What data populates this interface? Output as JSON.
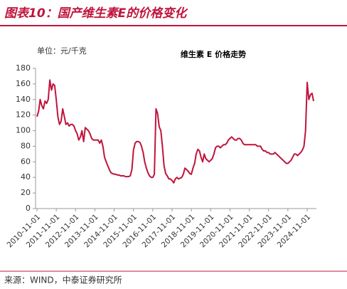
{
  "header": {
    "title": "图表10：国产维生素E的价格变化"
  },
  "chart_data": {
    "type": "line",
    "title": "维生素 E 价格走势",
    "unit_label": "单位：元/千克",
    "x": [
      "2010-11-01",
      "2010-12-01",
      "2011-01-01",
      "2011-02-01",
      "2011-03-01",
      "2011-04-01",
      "2011-05-01",
      "2011-06-01",
      "2011-07-01",
      "2011-08-01",
      "2011-09-01",
      "2011-10-01",
      "2011-11-01",
      "2011-12-01",
      "2012-01-01",
      "2012-02-01",
      "2012-03-01",
      "2012-04-01",
      "2012-05-01",
      "2012-06-01",
      "2012-07-01",
      "2012-08-01",
      "2012-09-01",
      "2012-10-01",
      "2012-11-01",
      "2012-12-01",
      "2013-01-01",
      "2013-02-01",
      "2013-03-01",
      "2013-04-01",
      "2013-05-01",
      "2013-06-01",
      "2013-07-01",
      "2013-08-01",
      "2013-09-01",
      "2013-10-01",
      "2013-11-01",
      "2013-12-01",
      "2014-01-01",
      "2014-02-01",
      "2014-03-01",
      "2014-04-01",
      "2014-05-01",
      "2014-06-01",
      "2014-07-01",
      "2014-08-01",
      "2014-09-01",
      "2014-10-01",
      "2014-11-01",
      "2014-12-01",
      "2015-01-01",
      "2015-02-01",
      "2015-03-01",
      "2015-04-01",
      "2015-05-01",
      "2015-06-01",
      "2015-07-01",
      "2015-08-01",
      "2015-09-01",
      "2015-10-01",
      "2015-11-01",
      "2015-12-01",
      "2016-01-01",
      "2016-02-01",
      "2016-03-01",
      "2016-04-01",
      "2016-05-01",
      "2016-06-01",
      "2016-07-01",
      "2016-08-01",
      "2016-09-01",
      "2016-10-01",
      "2016-11-01",
      "2016-12-01",
      "2017-01-01",
      "2017-02-01",
      "2017-03-01",
      "2017-04-01",
      "2017-05-01",
      "2017-06-01",
      "2017-07-01",
      "2017-08-01",
      "2017-09-01",
      "2017-10-01",
      "2017-11-01",
      "2017-12-01",
      "2018-01-01",
      "2018-02-01",
      "2018-03-01",
      "2018-04-01",
      "2018-05-01",
      "2018-06-01",
      "2018-07-01",
      "2018-08-01",
      "2018-09-01",
      "2018-10-01",
      "2018-11-01",
      "2018-12-01",
      "2019-01-01",
      "2019-02-01",
      "2019-03-01",
      "2019-04-01",
      "2019-05-01",
      "2019-06-01",
      "2019-07-01",
      "2019-08-01",
      "2019-09-01",
      "2019-10-01",
      "2019-11-01",
      "2019-12-01",
      "2020-01-01",
      "2020-02-01",
      "2020-03-01",
      "2020-04-01",
      "2020-05-01",
      "2020-06-01",
      "2020-07-01",
      "2020-08-01",
      "2020-09-01",
      "2020-10-01",
      "2020-11-01",
      "2020-12-01",
      "2021-01-01",
      "2021-02-01",
      "2021-03-01",
      "2021-04-01",
      "2021-05-01",
      "2021-06-01",
      "2021-07-01",
      "2021-08-01",
      "2021-09-01",
      "2021-10-01",
      "2021-11-01",
      "2021-12-01",
      "2022-01-01",
      "2022-02-01",
      "2022-03-01",
      "2022-04-01",
      "2022-05-01",
      "2022-06-01",
      "2022-07-01",
      "2022-08-01",
      "2022-09-01",
      "2022-10-01",
      "2022-11-01",
      "2022-12-01",
      "2023-01-01",
      "2023-02-01",
      "2023-03-01",
      "2023-04-01",
      "2023-05-01",
      "2023-06-01",
      "2023-07-01",
      "2023-08-01",
      "2023-09-01",
      "2023-10-01",
      "2023-11-01",
      "2023-12-01",
      "2024-01-01",
      "2024-02-01",
      "2024-03-01",
      "2024-04-01",
      "2024-05-01",
      "2024-06-01",
      "2024-07-01",
      "2024-08-01",
      "2024-09-01",
      "2024-10-01",
      "2024-11-01",
      "2024-12-01",
      "2025-01-01",
      "2025-02-01",
      "2025-03-01"
    ],
    "series": [
      {
        "color": "#c0143c",
        "values": [
          118,
          125,
          140,
          132,
          128,
          138,
          135,
          140,
          165,
          152,
          160,
          158,
          140,
          118,
          108,
          112,
          128,
          118,
          108,
          110,
          106,
          108,
          108,
          106,
          100,
          96,
          88,
          92,
          100,
          86,
          104,
          102,
          100,
          96,
          90,
          88,
          88,
          88,
          88,
          84,
          88,
          80,
          66,
          60,
          55,
          50,
          46,
          45,
          44,
          44,
          43,
          43,
          42,
          42,
          42,
          41,
          41,
          41,
          42,
          50,
          75,
          84,
          86,
          86,
          85,
          80,
          72,
          60,
          52,
          46,
          42,
          40,
          40,
          44,
          128,
          122,
          105,
          100,
          80,
          55,
          45,
          42,
          38,
          38,
          36,
          33,
          38,
          40,
          38,
          39,
          40,
          44,
          52,
          50,
          48,
          45,
          44,
          52,
          58,
          70,
          76,
          74,
          66,
          60,
          70,
          64,
          62,
          60,
          62,
          64,
          70,
          78,
          80,
          80,
          78,
          80,
          82,
          82,
          84,
          88,
          90,
          92,
          90,
          88,
          88,
          90,
          90,
          88,
          84,
          82,
          82,
          82,
          82,
          82,
          82,
          82,
          82,
          80,
          80,
          80,
          76,
          74,
          74,
          72,
          72,
          70,
          70,
          70,
          72,
          70,
          68,
          66,
          64,
          62,
          60,
          58,
          58,
          60,
          62,
          66,
          70,
          70,
          68,
          70,
          72,
          75,
          80,
          100,
          162,
          140,
          146,
          148,
          138
        ]
      }
    ],
    "xticks": [
      "2010-11-01",
      "2011-11-01",
      "2012-11-01",
      "2013-11-01",
      "2014-11-01",
      "2015-11-01",
      "2016-11-01",
      "2017-11-01",
      "2018-11-01",
      "2019-11-01",
      "2020-11-01",
      "2021-11-01",
      "2022-11-01",
      "2023-11-01",
      "2024-11-01"
    ],
    "ylim": [
      0,
      180
    ],
    "yticks": [
      0,
      20,
      40,
      60,
      80,
      100,
      120,
      140,
      160,
      180
    ]
  },
  "footer": {
    "source": "来源：WIND，中泰证券研究所"
  }
}
